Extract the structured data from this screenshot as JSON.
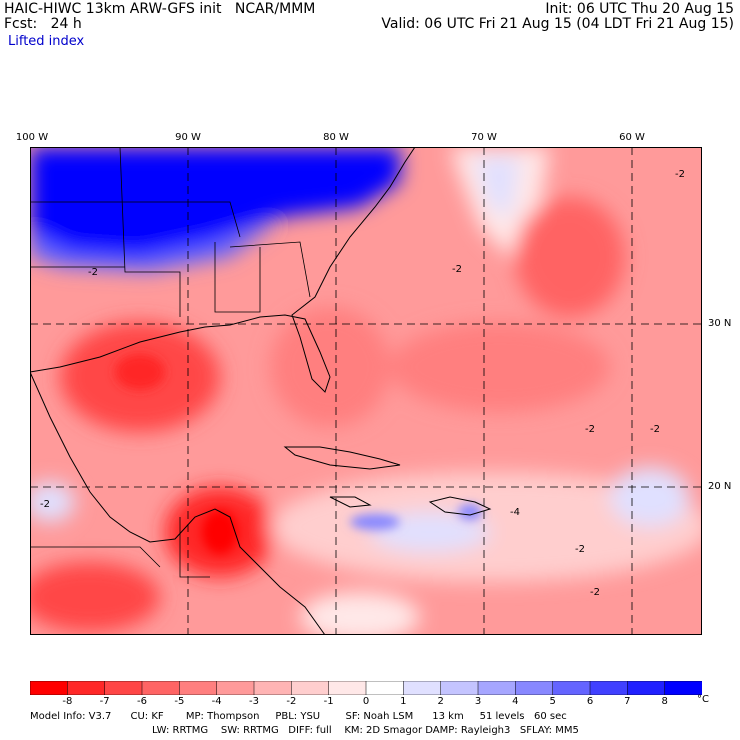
{
  "header": {
    "line1_left": "HAIC-HIWC 13km ARW-GFS init   NCAR/MMM",
    "line1_right": "Init: 06 UTC Thu 20 Aug 15",
    "line2_left": "Fcst:   24 h",
    "line2_right": "Valid: 06 UTC Fri 21 Aug 15 (04 LDT Fri 21 Aug 15)",
    "field_name": "Lifted index"
  },
  "longitude_labels": [
    "100 W",
    "90 W",
    "80 W",
    "70 W",
    "60 W"
  ],
  "latitude_labels": [
    "30 N",
    "20 N"
  ],
  "contour_labels": [
    "-2",
    "-2",
    "-2",
    "-2",
    "-4",
    "-2",
    "-2",
    "-2",
    "-2"
  ],
  "colorbar": {
    "ticks": [
      "-8",
      "-7",
      "-6",
      "-5",
      "-4",
      "-3",
      "-2",
      "-1",
      "0",
      "1",
      "2",
      "3",
      "4",
      "5",
      "6",
      "7",
      "8"
    ],
    "unit": "°C",
    "colors": [
      "#ff0000",
      "#ff2828",
      "#ff4646",
      "#ff6464",
      "#ff7f7f",
      "#ff9a9a",
      "#ffb4b4",
      "#ffcece",
      "#ffe8e8",
      "#ffffff",
      "#e0e0ff",
      "#c4c4ff",
      "#a6a6ff",
      "#8888ff",
      "#6464ff",
      "#4040ff",
      "#2020ff",
      "#0000ff"
    ]
  },
  "footer": {
    "line1": "Model Info: V3.7      CU: KF       MP: Thompson     PBL: YSU        SF: Noah LSM      13 km     51 levels   60 sec",
    "line2": "LW: RRTMG    SW: RRTMG   DIFF: full    KM: 2D Smagor DAMP: Rayleigh3   SFLAY: MM5"
  }
}
